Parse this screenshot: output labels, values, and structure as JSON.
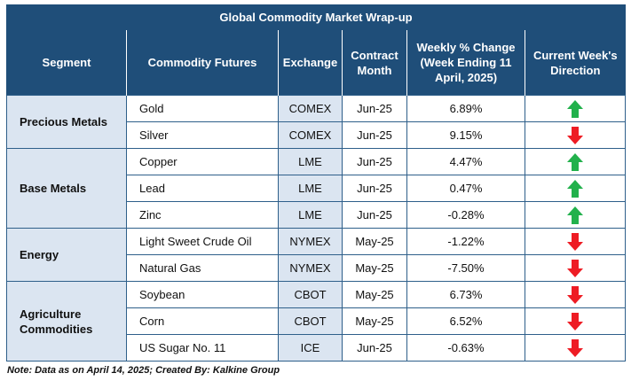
{
  "title": "Global Commodity Market Wrap-up",
  "headers": {
    "segment": "Segment",
    "futures": "Commodity Futures",
    "exchange": "Exchange",
    "month": "Contract Month",
    "change": "Weekly % Change (Week Ending 11 April, 2025)",
    "direction": "Current Week's Direction"
  },
  "segments": [
    "Precious Metals",
    "Base Metals",
    "Energy",
    "Agriculture Commodities"
  ],
  "rows": [
    {
      "futures": "Gold",
      "exchange": "COMEX",
      "month": "Jun-25",
      "change": "6.89%",
      "direction": "up"
    },
    {
      "futures": "Silver",
      "exchange": "COMEX",
      "month": "Jun-25",
      "change": "9.15%",
      "direction": "down"
    },
    {
      "futures": "Copper",
      "exchange": "LME",
      "month": "Jun-25",
      "change": "4.47%",
      "direction": "up"
    },
    {
      "futures": "Lead",
      "exchange": "LME",
      "month": "Jun-25",
      "change": "0.47%",
      "direction": "up"
    },
    {
      "futures": "Zinc",
      "exchange": "LME",
      "month": "Jun-25",
      "change": "-0.28%",
      "direction": "up"
    },
    {
      "futures": "Light Sweet Crude Oil",
      "exchange": "NYMEX",
      "month": "May-25",
      "change": "-1.22%",
      "direction": "down"
    },
    {
      "futures": "Natural Gas",
      "exchange": "NYMEX",
      "month": "May-25",
      "change": "-7.50%",
      "direction": "down"
    },
    {
      "futures": "Soybean",
      "exchange": "CBOT",
      "month": "May-25",
      "change": "6.73%",
      "direction": "down"
    },
    {
      "futures": "Corn",
      "exchange": "CBOT",
      "month": "May-25",
      "change": "6.52%",
      "direction": "down"
    },
    {
      "futures": "US Sugar No. 11",
      "exchange": "ICE",
      "month": "Jun-25",
      "change": "-0.63%",
      "direction": "down"
    }
  ],
  "note": "Note: Data as on April 14, 2025; Created By: Kalkine Group",
  "colors": {
    "header_bg": "#1f4e79",
    "light_fill": "#dbe5f1",
    "up": "#22b14c",
    "down": "#ee1c24"
  }
}
